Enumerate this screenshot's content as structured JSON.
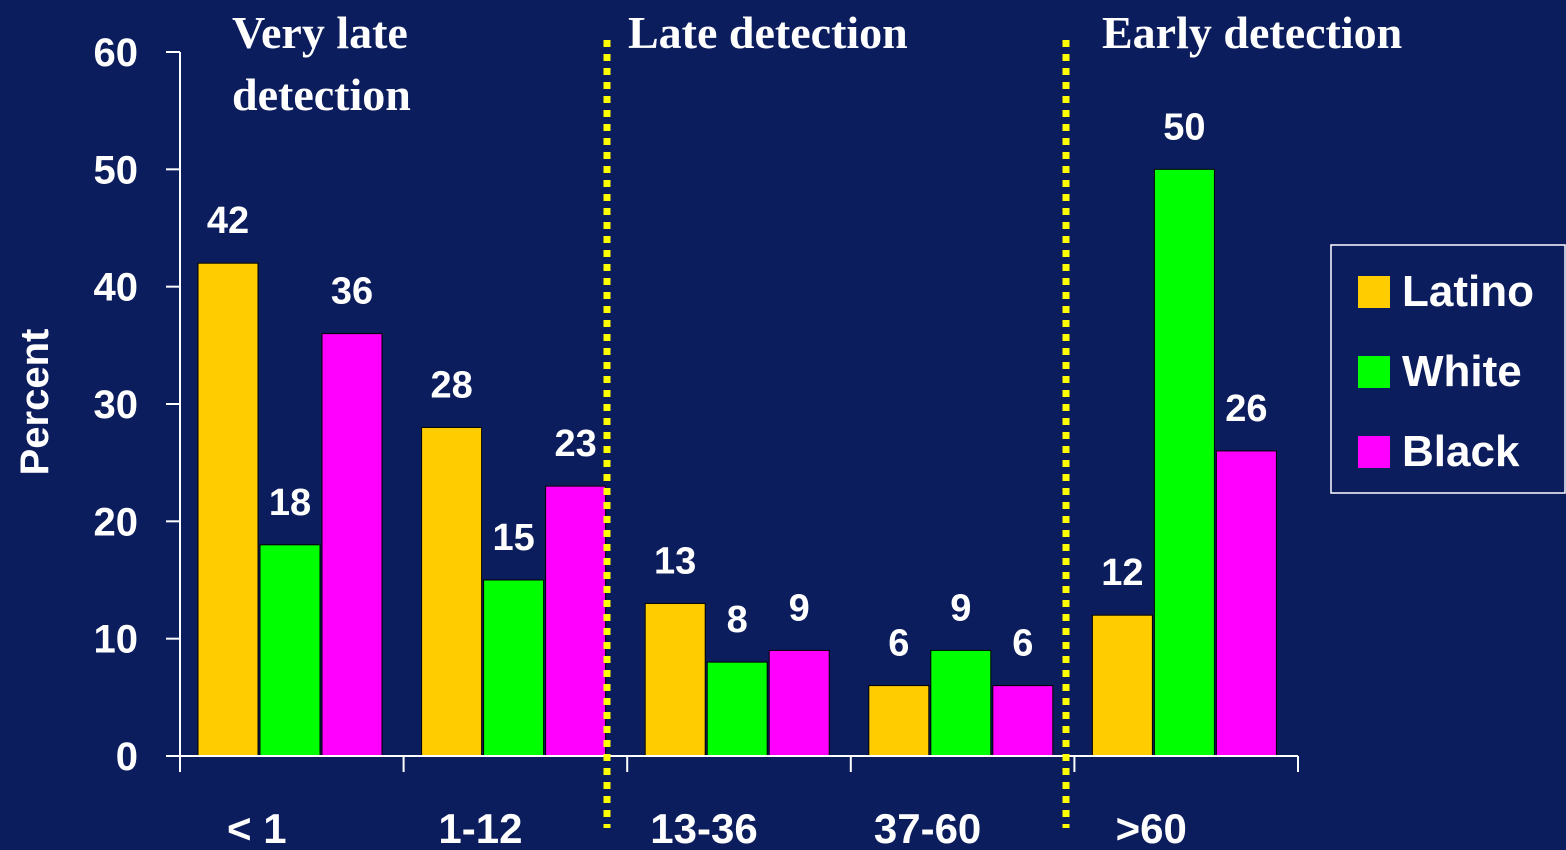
{
  "chart_data": {
    "type": "bar",
    "title": "",
    "xlabel": "",
    "ylabel": "Percent",
    "ylim": [
      0,
      60
    ],
    "yticks": [
      0,
      10,
      20,
      30,
      40,
      50,
      60
    ],
    "categories": [
      "< 1",
      "1-12",
      "13-36",
      "37-60",
      ">60"
    ],
    "series": [
      {
        "name": "Latino",
        "color": "#ffcc00",
        "values": [
          42,
          28,
          13,
          6,
          12
        ]
      },
      {
        "name": "White",
        "color": "#00ff00",
        "values": [
          18,
          15,
          8,
          9,
          50
        ]
      },
      {
        "name": "Black",
        "color": "#ff00ff",
        "values": [
          36,
          23,
          9,
          6,
          26
        ]
      }
    ],
    "region_labels": [
      {
        "lines": [
          "Very late",
          "detection"
        ]
      },
      {
        "lines": [
          "Late detection"
        ]
      },
      {
        "lines": [
          "Early detection"
        ]
      }
    ],
    "divider_color": "#ffff00",
    "legend_position": "right",
    "grid": false
  },
  "colors": {
    "background": "#0c1d5e",
    "axis": "#ffffff",
    "text": "#ffffff"
  }
}
